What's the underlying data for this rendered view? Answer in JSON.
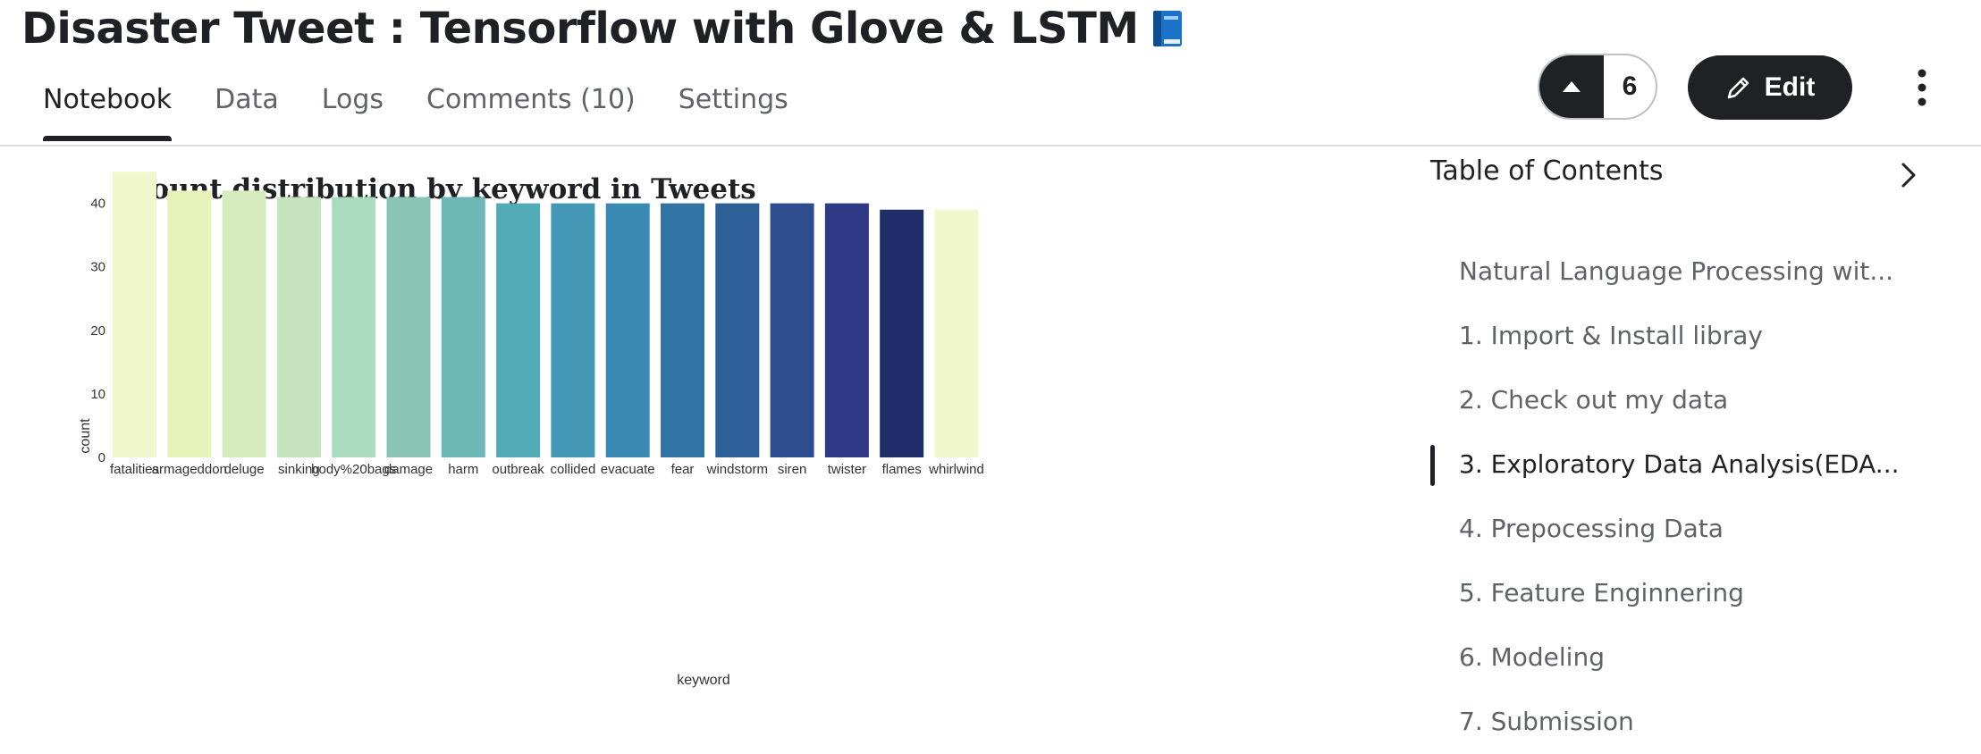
{
  "header": {
    "title": "Disaster Tweet : Tensorflow with Glove & LSTM",
    "title_icon": "blue-book-icon"
  },
  "tabs": [
    {
      "label": "Notebook",
      "active": true
    },
    {
      "label": "Data",
      "active": false
    },
    {
      "label": "Logs",
      "active": false
    },
    {
      "label": "Comments (10)",
      "active": false
    },
    {
      "label": "Settings",
      "active": false
    }
  ],
  "actions": {
    "upvote_count": "6",
    "edit_label": "Edit"
  },
  "toc": {
    "title": "Table of Contents",
    "items": [
      {
        "label": "Natural Language Processing wit...",
        "active": false
      },
      {
        "label": "1. Import & Install libray",
        "active": false
      },
      {
        "label": "2. Check out my data",
        "active": false
      },
      {
        "label": "3. Exploratory Data Analysis(EDA...",
        "active": true
      },
      {
        "label": "4. Prepocessing Data",
        "active": false
      },
      {
        "label": "5. Feature Enginnering",
        "active": false
      },
      {
        "label": "6. Modeling",
        "active": false
      },
      {
        "label": "7. Submission",
        "active": false
      }
    ]
  },
  "chart_data": {
    "type": "bar",
    "title": "Count distribution by keyword in Tweets",
    "xlabel": "keyword",
    "ylabel": "count",
    "categories": [
      "fatalities",
      "armageddon",
      "deluge",
      "sinking",
      "body%20bags",
      "damage",
      "harm",
      "outbreak",
      "collided",
      "evacuate",
      "fear",
      "windstorm",
      "siren",
      "twister",
      "flames",
      "whirlwind"
    ],
    "values": [
      45,
      42,
      42,
      41,
      41,
      41,
      41,
      40,
      40,
      40,
      40,
      40,
      40,
      40,
      39,
      39
    ],
    "colors": [
      "#f0f7cc",
      "#e6f2b8",
      "#d6ebbe",
      "#c5e4bd",
      "#a9dbbf",
      "#8ac4b5",
      "#6db8b6",
      "#53abb7",
      "#4498b5",
      "#3a89b2",
      "#3173a3",
      "#2d5f99",
      "#2e4d8f",
      "#2e3a85",
      "#1f2d6b",
      "#f0f7cc"
    ],
    "yticks": [
      0,
      10,
      20,
      30,
      40
    ],
    "ylim": [
      0,
      45
    ],
    "grid": false
  }
}
